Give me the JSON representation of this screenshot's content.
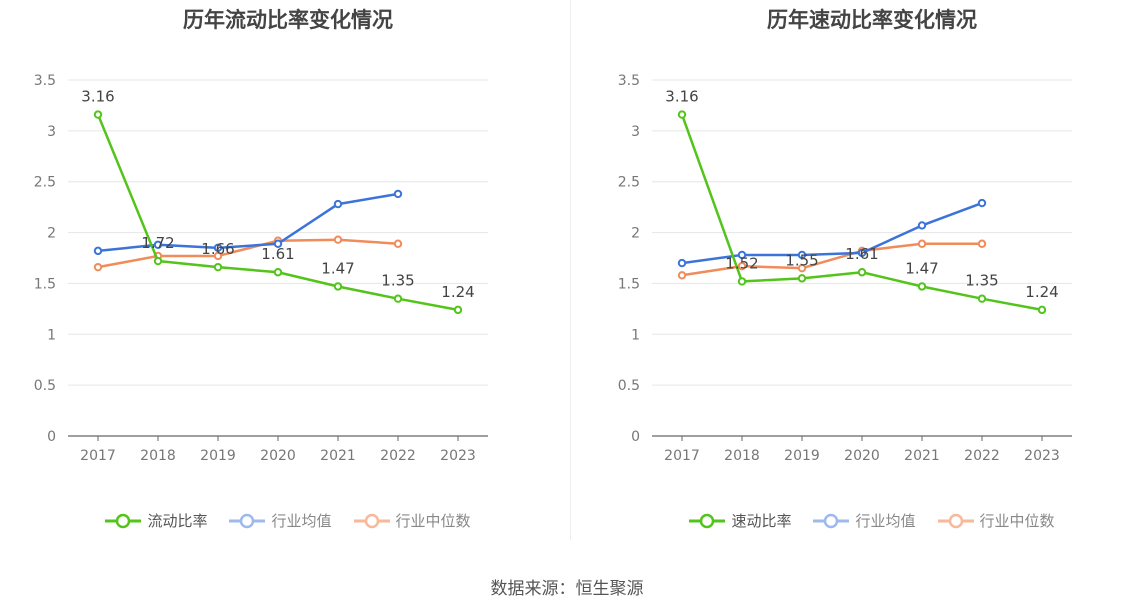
{
  "source": "数据来源：恒生聚源",
  "colors": {
    "primary": "#52c41a",
    "avg": "#3b73d9",
    "median": "#f08c5a"
  },
  "chart_data": [
    {
      "type": "line",
      "title": "历年流动比率变化情况",
      "categories": [
        "2017",
        "2018",
        "2019",
        "2020",
        "2021",
        "2022",
        "2023"
      ],
      "ylim": [
        0,
        3.5
      ],
      "yticks": [
        "0",
        "0.5",
        "1",
        "1.5",
        "2",
        "2.5",
        "3",
        "3.5"
      ],
      "series": [
        {
          "name": "流动比率",
          "values": [
            3.16,
            1.72,
            1.66,
            1.61,
            1.47,
            1.35,
            1.24
          ],
          "labels": [
            "3.16",
            "1.72",
            "1.66",
            "1.61",
            "1.47",
            "1.35",
            "1.24"
          ]
        },
        {
          "name": "行业均值",
          "values": [
            1.82,
            1.88,
            1.85,
            1.89,
            2.28,
            2.38,
            null
          ]
        },
        {
          "name": "行业中位数",
          "values": [
            1.66,
            1.77,
            1.77,
            1.92,
            1.93,
            1.89,
            null
          ]
        }
      ]
    },
    {
      "type": "line",
      "title": "历年速动比率变化情况",
      "categories": [
        "2017",
        "2018",
        "2019",
        "2020",
        "2021",
        "2022",
        "2023"
      ],
      "ylim": [
        0,
        3.5
      ],
      "yticks": [
        "0",
        "0.5",
        "1",
        "1.5",
        "2",
        "2.5",
        "3",
        "3.5"
      ],
      "series": [
        {
          "name": "速动比率",
          "values": [
            3.16,
            1.52,
            1.55,
            1.61,
            1.47,
            1.35,
            1.24
          ],
          "labels": [
            "3.16",
            "1.52",
            "1.55",
            "1.61",
            "1.47",
            "1.35",
            "1.24"
          ]
        },
        {
          "name": "行业均值",
          "values": [
            1.7,
            1.78,
            1.78,
            1.8,
            2.07,
            2.29,
            null
          ]
        },
        {
          "name": "行业中位数",
          "values": [
            1.58,
            1.67,
            1.65,
            1.82,
            1.89,
            1.89,
            null
          ]
        }
      ]
    }
  ]
}
